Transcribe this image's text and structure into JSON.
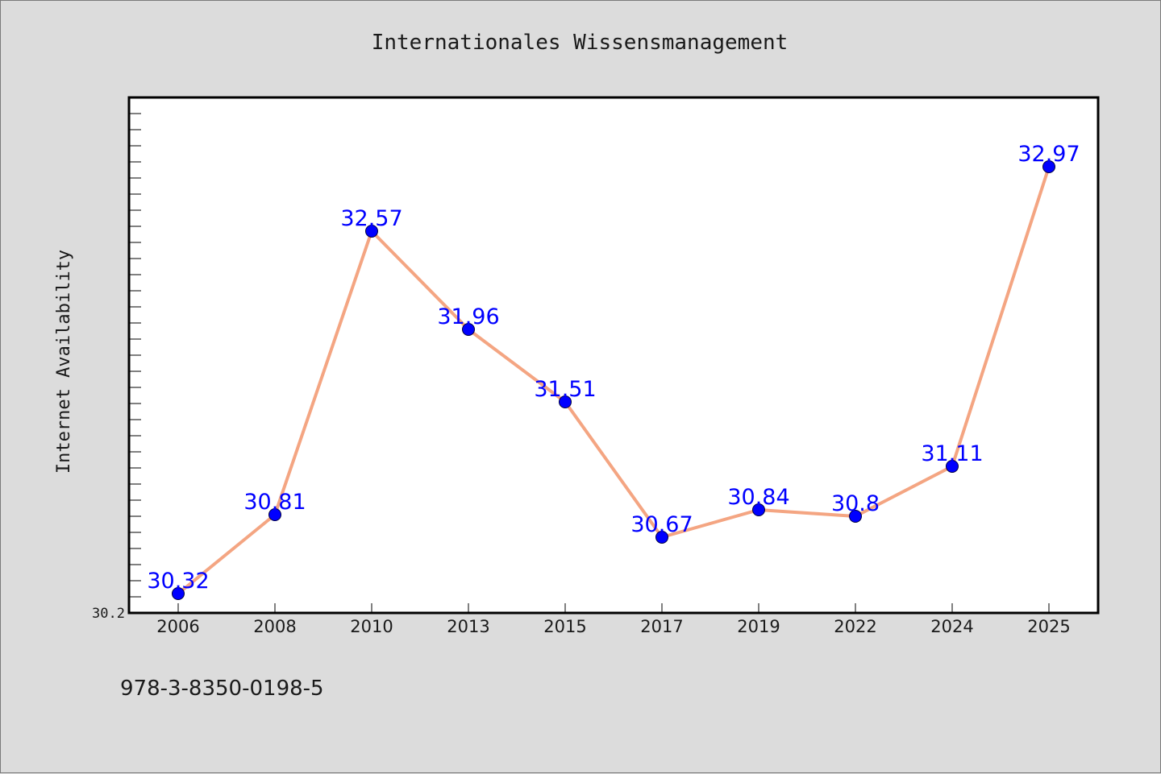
{
  "chart_data": {
    "type": "line",
    "title": "Internationales Wissensmanagement",
    "xlabel": "",
    "ylabel": "Internet Availability",
    "categories": [
      "2006",
      "2008",
      "2010",
      "2013",
      "2015",
      "2017",
      "2019",
      "2022",
      "2024",
      "2025"
    ],
    "series": [
      {
        "values": [
          30.32,
          30.81,
          32.57,
          31.96,
          31.51,
          30.67,
          30.84,
          30.8,
          31.11,
          32.97
        ],
        "labels": [
          "30.32",
          "30.81",
          "32.57",
          "31.96",
          "31.51",
          "30.67",
          "30.84",
          "30.8",
          "31.11",
          "32.97"
        ]
      }
    ],
    "ylim": [
      30.2,
      33.4
    ],
    "y_tick_labels": [
      "30.2"
    ],
    "grid": false,
    "legend": "none",
    "colors": {
      "line": "#f4a582",
      "marker": "#0000ff",
      "label": "#0000ff",
      "plot_background": "#ffffff",
      "figure_background": "#dcdcdc"
    }
  },
  "footer": {
    "isbn": "978-3-8350-0198-5"
  }
}
